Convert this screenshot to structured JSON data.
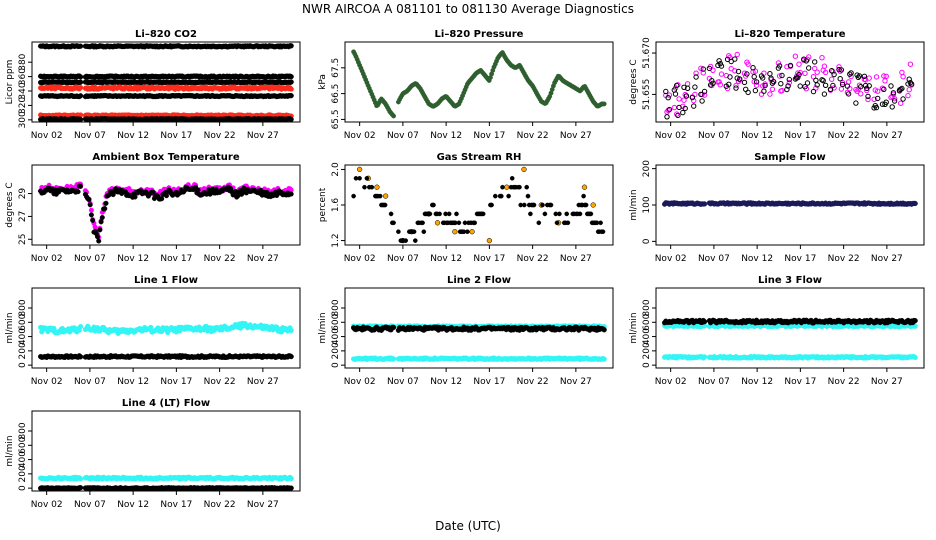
{
  "page": {
    "title": "NWR   AIRCOA A   081101 to 081130   Average Diagnostics",
    "xlabel": "Date (UTC)"
  },
  "colors": {
    "black": "#000000",
    "red": "#ff2a1a",
    "magenta": "#ff00ff",
    "orange": "#ffa500",
    "cyan": "#33f5f5",
    "dark_green": "#2f5f2f",
    "navy": "#1a1a5a"
  },
  "chart_data": [
    {
      "id": "co2",
      "type": "scatter",
      "title": "Li–820 CO2",
      "ylabel": "Licor ppm",
      "ylim": [
        297,
        408
      ],
      "yticks": [
        "300",
        "320",
        "340",
        "360",
        "380"
      ],
      "ytick_values": [
        300,
        320,
        340,
        360,
        380
      ],
      "xticks": [
        "Nov 02",
        "Nov 07",
        "Nov 12",
        "Nov 17",
        "Nov 22",
        "Nov 27"
      ],
      "series": [
        {
          "color": "black",
          "kind": "band",
          "value": 402,
          "spread": 0.8
        },
        {
          "color": "black",
          "kind": "band",
          "value": 360,
          "spread": 0.8
        },
        {
          "color": "black",
          "kind": "band",
          "value": 352,
          "spread": 0.6
        },
        {
          "color": "red",
          "kind": "band",
          "value": 344,
          "spread": 1.6
        },
        {
          "color": "black",
          "kind": "band",
          "value": 333,
          "spread": 0.8
        },
        {
          "color": "red",
          "kind": "band",
          "value": 306,
          "spread": 0.8
        },
        {
          "color": "black",
          "kind": "band",
          "value": 301,
          "spread": 0.6
        }
      ]
    },
    {
      "id": "pressure",
      "type": "line",
      "title": "Li–820 Pressure",
      "ylabel": "kPa",
      "ylim": [
        65.4,
        68.5
      ],
      "yticks": [
        "65.5",
        "66.5",
        "67.5"
      ],
      "ytick_values": [
        65.5,
        66.5,
        67.5
      ],
      "xticks": [
        "Nov 02",
        "Nov 07",
        "Nov 12",
        "Nov 17",
        "Nov 22",
        "Nov 27"
      ],
      "series": [
        {
          "color": "dark_green",
          "x": [
            0,
            0.5,
            1,
            1.5,
            2,
            2.5,
            3,
            3.5,
            4,
            4.5,
            5,
            5.5,
            6,
            6.5,
            7,
            7.5,
            8,
            8.5,
            9,
            9.5,
            10,
            10.5,
            11,
            11.5,
            12,
            12.5,
            13,
            13.5,
            14,
            14.5,
            15,
            15.5,
            16,
            16.5,
            17,
            17.5,
            18,
            18.5,
            19,
            19.5,
            20,
            20.5,
            21,
            21.5,
            22,
            22.5,
            23,
            23.5,
            24,
            24.5,
            25,
            25.5,
            26,
            26.5,
            27,
            27.5,
            28,
            28.5,
            29
          ],
          "values": [
            68.3,
            68.0,
            67.6,
            67.2,
            66.8,
            66.4,
            66.0,
            66.3,
            66.1,
            65.8,
            65.6,
            66.2,
            66.5,
            66.6,
            66.8,
            66.9,
            66.7,
            66.4,
            66.1,
            66.0,
            66.1,
            66.3,
            66.4,
            66.2,
            66.0,
            66.1,
            66.5,
            66.9,
            67.1,
            67.3,
            67.4,
            67.2,
            67.0,
            67.5,
            67.9,
            68.1,
            67.8,
            67.6,
            67.5,
            67.6,
            67.3,
            67.0,
            66.8,
            66.5,
            66.2,
            66.1,
            66.4,
            66.9,
            67.2,
            67.0,
            66.9,
            66.8,
            66.7,
            66.6,
            66.8,
            66.5,
            66.2,
            66.0,
            66.1
          ]
        }
      ]
    },
    {
      "id": "temperature",
      "type": "scatter",
      "title": "Li–820 Temperature",
      "ylabel": "degrees C",
      "ylim": [
        51.645,
        51.674
      ],
      "yticks": [
        "51.655",
        "51.670"
      ],
      "ytick_values": [
        51.655,
        51.67
      ],
      "xticks": [
        "Nov 02",
        "Nov 07",
        "Nov 12",
        "Nov 17",
        "Nov 22",
        "Nov 27"
      ],
      "series": [
        {
          "color": "magenta",
          "kind": "noisy_open",
          "x": [
            0,
            3,
            6,
            9,
            12,
            15,
            18,
            21,
            24,
            27,
            29
          ],
          "values": [
            51.651,
            51.656,
            51.662,
            51.664,
            51.66,
            51.663,
            51.663,
            51.659,
            51.657,
            51.656,
            51.662
          ]
        },
        {
          "color": "black",
          "kind": "noisy_open",
          "x": [
            0,
            3,
            6,
            9,
            12,
            15,
            18,
            21,
            24,
            27,
            29
          ],
          "values": [
            51.65,
            51.655,
            51.661,
            51.663,
            51.659,
            51.662,
            51.662,
            51.658,
            51.656,
            51.655,
            51.661
          ]
        }
      ]
    },
    {
      "id": "ambient",
      "type": "scatter",
      "title": "Ambient Box Temperature",
      "ylabel": "degrees C",
      "ylim": [
        24.5,
        31.5
      ],
      "yticks": [
        "25",
        "27",
        "29"
      ],
      "ytick_values": [
        25,
        27,
        29
      ],
      "xticks": [
        "Nov 02",
        "Nov 07",
        "Nov 12",
        "Nov 17",
        "Nov 22",
        "Nov 27"
      ],
      "series": [
        {
          "color": "magenta",
          "kind": "dense",
          "x": [
            0,
            1,
            2,
            3,
            4,
            5,
            5.5,
            6,
            6.5,
            7,
            7.5,
            8,
            9,
            10,
            11,
            12,
            13,
            14,
            15,
            16,
            17,
            18,
            19,
            20,
            21,
            22,
            23,
            24,
            25,
            26,
            27,
            28,
            29
          ],
          "values": [
            29.2,
            29.6,
            29.3,
            29.5,
            29.4,
            29.7,
            29.0,
            28.5,
            26.0,
            25.2,
            27.5,
            29.0,
            29.4,
            29.3,
            29.1,
            29.3,
            29.2,
            28.9,
            29.3,
            29.1,
            29.5,
            29.6,
            29.2,
            29.4,
            29.3,
            29.6,
            29.1,
            29.5,
            29.4,
            29.2,
            29.0,
            29.3,
            29.2
          ]
        },
        {
          "color": "black",
          "kind": "dense",
          "x": [
            0,
            1,
            2,
            3,
            4,
            5,
            5.5,
            6,
            6.5,
            7,
            7.5,
            8,
            9,
            10,
            11,
            12,
            13,
            14,
            15,
            16,
            17,
            18,
            19,
            20,
            21,
            22,
            23,
            24,
            25,
            26,
            27,
            28,
            29
          ],
          "values": [
            29.0,
            29.4,
            29.1,
            29.3,
            29.2,
            29.5,
            28.8,
            28.2,
            25.6,
            24.9,
            27.2,
            28.8,
            29.2,
            29.1,
            28.9,
            29.1,
            29.0,
            28.6,
            29.1,
            28.9,
            29.3,
            29.4,
            29.0,
            29.2,
            29.1,
            29.4,
            28.9,
            29.3,
            29.2,
            29.0,
            28.8,
            29.1,
            29.0
          ]
        }
      ]
    },
    {
      "id": "rh",
      "type": "scatter",
      "title": "Gas Stream RH",
      "ylabel": "percent",
      "ylim": [
        1.15,
        2.05
      ],
      "yticks": [
        "1.2",
        "1.6",
        "2.0"
      ],
      "ytick_values": [
        1.2,
        1.6,
        2.0
      ],
      "xticks": [
        "Nov 02",
        "Nov 07",
        "Nov 12",
        "Nov 17",
        "Nov 22",
        "Nov 27"
      ],
      "series": [
        {
          "color": "orange",
          "kind": "outlier",
          "x": [
            1,
            2,
            3,
            4,
            6,
            7,
            9,
            10,
            12,
            14,
            16,
            18,
            20,
            22,
            24,
            27,
            28
          ],
          "values": [
            2.0,
            1.9,
            1.8,
            1.7,
            1.2,
            1.3,
            1.5,
            1.4,
            1.3,
            1.3,
            1.2,
            1.8,
            2.0,
            1.6,
            1.4,
            1.8,
            1.6
          ]
        },
        {
          "color": "black",
          "kind": "step",
          "x": [
            0,
            1,
            2,
            3,
            4,
            5,
            6,
            7,
            8,
            9,
            10,
            11,
            12,
            13,
            14,
            15,
            16,
            17,
            18,
            19,
            20,
            21,
            22,
            23,
            24,
            25,
            26,
            27,
            28,
            29
          ],
          "values": [
            1.8,
            1.9,
            1.8,
            1.7,
            1.6,
            1.4,
            1.2,
            1.3,
            1.4,
            1.5,
            1.5,
            1.4,
            1.4,
            1.3,
            1.4,
            1.5,
            1.6,
            1.7,
            1.7,
            1.8,
            1.7,
            1.6,
            1.5,
            1.6,
            1.5,
            1.4,
            1.5,
            1.6,
            1.4,
            1.3
          ]
        }
      ]
    },
    {
      "id": "sample",
      "type": "scatter",
      "title": "Sample Flow",
      "ylabel": "ml/min",
      "ylim": [
        -10,
        210
      ],
      "yticks": [
        "0",
        "100",
        "200"
      ],
      "ytick_values": [
        0,
        100,
        200
      ],
      "xticks": [
        "Nov 02",
        "Nov 07",
        "Nov 12",
        "Nov 17",
        "Nov 22",
        "Nov 27"
      ],
      "series": [
        {
          "color": "navy",
          "kind": "band",
          "value": 104,
          "spread": 2
        }
      ]
    },
    {
      "id": "line1",
      "type": "scatter",
      "title": "Line 1 Flow",
      "ylabel": "ml/min",
      "ylim": [
        -40,
        1080
      ],
      "yticks": [
        "0",
        "200",
        "400",
        "600",
        "800"
      ],
      "ytick_values": [
        0,
        200,
        400,
        600,
        800
      ],
      "xticks": [
        "Nov 02",
        "Nov 07",
        "Nov 12",
        "Nov 17",
        "Nov 22",
        "Nov 27"
      ],
      "series": [
        {
          "color": "cyan",
          "kind": "wavy",
          "x": [
            0,
            3,
            6,
            9,
            12,
            15,
            18,
            21,
            24,
            25,
            27,
            29
          ],
          "values": [
            500,
            480,
            520,
            470,
            500,
            490,
            510,
            500,
            560,
            540,
            510,
            490
          ],
          "spread": 35
        },
        {
          "color": "black",
          "kind": "band",
          "value": 120,
          "spread": 12
        }
      ]
    },
    {
      "id": "line2",
      "type": "scatter",
      "title": "Line 2 Flow",
      "ylabel": "ml/min",
      "ylim": [
        -40,
        1080
      ],
      "yticks": [
        "0",
        "200",
        "400",
        "600",
        "800"
      ],
      "ytick_values": [
        0,
        200,
        400,
        600,
        800
      ],
      "xticks": [
        "Nov 02",
        "Nov 07",
        "Nov 12",
        "Nov 17",
        "Nov 22",
        "Nov 27"
      ],
      "series": [
        {
          "color": "cyan",
          "kind": "band",
          "value": 540,
          "spread": 10
        },
        {
          "color": "black",
          "kind": "band",
          "value": 510,
          "spread": 22
        },
        {
          "color": "cyan",
          "kind": "band",
          "value": 90,
          "spread": 10
        }
      ]
    },
    {
      "id": "line3",
      "type": "scatter",
      "title": "Line 3 Flow",
      "ylabel": "ml/min",
      "ylim": [
        -40,
        1080
      ],
      "yticks": [
        "0",
        "200",
        "400",
        "600",
        "800"
      ],
      "ytick_values": [
        0,
        200,
        400,
        600,
        800
      ],
      "xticks": [
        "Nov 02",
        "Nov 07",
        "Nov 12",
        "Nov 17",
        "Nov 22",
        "Nov 27"
      ],
      "series": [
        {
          "color": "cyan",
          "kind": "band",
          "value": 550,
          "spread": 12
        },
        {
          "color": "black",
          "kind": "band",
          "value": 610,
          "spread": 18
        },
        {
          "color": "cyan",
          "kind": "band",
          "value": 110,
          "spread": 10
        }
      ]
    },
    {
      "id": "line4",
      "type": "scatter",
      "title": "Line 4 (LT) Flow",
      "ylabel": "ml/min",
      "ylim": [
        -40,
        1080
      ],
      "yticks": [
        "0",
        "200",
        "400",
        "600",
        "800"
      ],
      "ytick_values": [
        0,
        200,
        400,
        600,
        800
      ],
      "xticks": [
        "Nov 02",
        "Nov 07",
        "Nov 12",
        "Nov 17",
        "Nov 22",
        "Nov 27"
      ],
      "series": [
        {
          "color": "cyan",
          "kind": "band",
          "value": 140,
          "spread": 12
        },
        {
          "color": "black",
          "kind": "band",
          "value": 0,
          "spread": 6
        }
      ]
    }
  ]
}
